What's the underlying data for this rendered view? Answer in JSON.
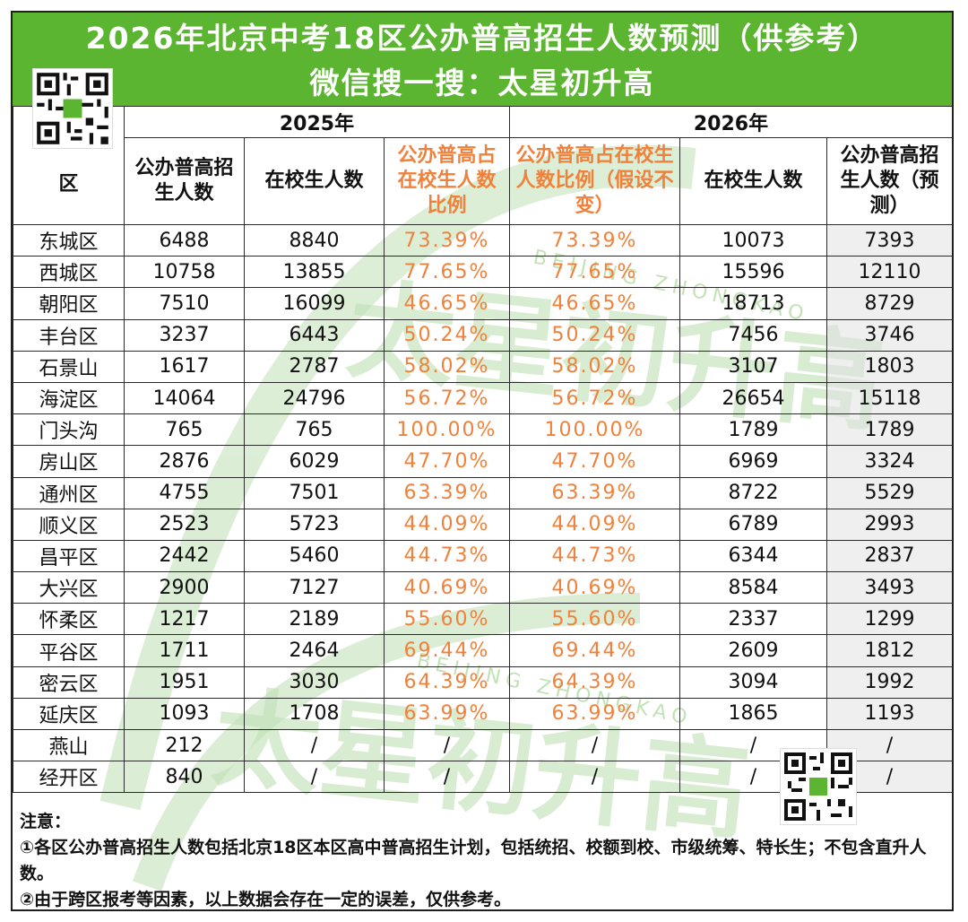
{
  "header": {
    "title": "2026年北京中考18区公办普高招生人数预测（供参考）",
    "subtitle": "微信搜一搜：太星初升高"
  },
  "watermark": {
    "text": "太星初升高",
    "latin": "BEIJING ZHONGKAO"
  },
  "table": {
    "district_header": "区",
    "group_2025": "2025年",
    "group_2026": "2026年",
    "columns": [
      "公办普高招生人数",
      "在校生人数",
      "公办普高占在校生人数比例",
      "公办普高占在校生人数比例（假设不变）",
      "在校生人数",
      "公办普高招生人数（预测）"
    ],
    "rows": [
      {
        "district": "东城区",
        "enroll_2025": "6488",
        "students_2025": "8840",
        "ratio_2025": "73.39%",
        "ratio_2026": "73.39%",
        "students_2026": "10073",
        "enroll_2026": "7393"
      },
      {
        "district": "西城区",
        "enroll_2025": "10758",
        "students_2025": "13855",
        "ratio_2025": "77.65%",
        "ratio_2026": "77.65%",
        "students_2026": "15596",
        "enroll_2026": "12110"
      },
      {
        "district": "朝阳区",
        "enroll_2025": "7510",
        "students_2025": "16099",
        "ratio_2025": "46.65%",
        "ratio_2026": "46.65%",
        "students_2026": "18713",
        "enroll_2026": "8729"
      },
      {
        "district": "丰台区",
        "enroll_2025": "3237",
        "students_2025": "6443",
        "ratio_2025": "50.24%",
        "ratio_2026": "50.24%",
        "students_2026": "7456",
        "enroll_2026": "3746"
      },
      {
        "district": "石景山",
        "enroll_2025": "1617",
        "students_2025": "2787",
        "ratio_2025": "58.02%",
        "ratio_2026": "58.02%",
        "students_2026": "3107",
        "enroll_2026": "1803"
      },
      {
        "district": "海淀区",
        "enroll_2025": "14064",
        "students_2025": "24796",
        "ratio_2025": "56.72%",
        "ratio_2026": "56.72%",
        "students_2026": "26654",
        "enroll_2026": "15118"
      },
      {
        "district": "门头沟",
        "enroll_2025": "765",
        "students_2025": "765",
        "ratio_2025": "100.00%",
        "ratio_2026": "100.00%",
        "students_2026": "1789",
        "enroll_2026": "1789"
      },
      {
        "district": "房山区",
        "enroll_2025": "2876",
        "students_2025": "6029",
        "ratio_2025": "47.70%",
        "ratio_2026": "47.70%",
        "students_2026": "6969",
        "enroll_2026": "3324"
      },
      {
        "district": "通州区",
        "enroll_2025": "4755",
        "students_2025": "7501",
        "ratio_2025": "63.39%",
        "ratio_2026": "63.39%",
        "students_2026": "8722",
        "enroll_2026": "5529"
      },
      {
        "district": "顺义区",
        "enroll_2025": "2523",
        "students_2025": "5723",
        "ratio_2025": "44.09%",
        "ratio_2026": "44.09%",
        "students_2026": "6789",
        "enroll_2026": "2993"
      },
      {
        "district": "昌平区",
        "enroll_2025": "2442",
        "students_2025": "5460",
        "ratio_2025": "44.73%",
        "ratio_2026": "44.73%",
        "students_2026": "6344",
        "enroll_2026": "2837"
      },
      {
        "district": "大兴区",
        "enroll_2025": "2900",
        "students_2025": "7127",
        "ratio_2025": "40.69%",
        "ratio_2026": "40.69%",
        "students_2026": "8584",
        "enroll_2026": "3493"
      },
      {
        "district": "怀柔区",
        "enroll_2025": "1217",
        "students_2025": "2189",
        "ratio_2025": "55.60%",
        "ratio_2026": "55.60%",
        "students_2026": "2337",
        "enroll_2026": "1299"
      },
      {
        "district": "平谷区",
        "enroll_2025": "1711",
        "students_2025": "2464",
        "ratio_2025": "69.44%",
        "ratio_2026": "69.44%",
        "students_2026": "2609",
        "enroll_2026": "1812"
      },
      {
        "district": "密云区",
        "enroll_2025": "1951",
        "students_2025": "3030",
        "ratio_2025": "64.39%",
        "ratio_2026": "64.39%",
        "students_2026": "3094",
        "enroll_2026": "1992"
      },
      {
        "district": "延庆区",
        "enroll_2025": "1093",
        "students_2025": "1708",
        "ratio_2025": "63.99%",
        "ratio_2026": "63.99%",
        "students_2026": "1865",
        "enroll_2026": "1193"
      },
      {
        "district": "燕山",
        "enroll_2025": "212",
        "students_2025": "/",
        "ratio_2025": "/",
        "ratio_2026": "/",
        "students_2026": "/",
        "enroll_2026": "/"
      },
      {
        "district": "经开区",
        "enroll_2025": "840",
        "students_2025": "/",
        "ratio_2025": "/",
        "ratio_2026": "/",
        "students_2026": "/",
        "enroll_2026": "/"
      }
    ]
  },
  "notes": {
    "heading": "注意：",
    "items": [
      "①各区公办普高招生人数包括北京18区本区高中普高招生计划，包括统招、校额到校、市级统筹、特长生；不包含直升人数。",
      "②由于跨区报考等因素，以上数据会存在一定的误差，仅供参考。"
    ]
  },
  "colors": {
    "banner_green": "#5cb531",
    "ratio_orange": "#f0813a",
    "watermark_green": "#bfe0b4",
    "watermark_orange": "#fbd28a"
  }
}
